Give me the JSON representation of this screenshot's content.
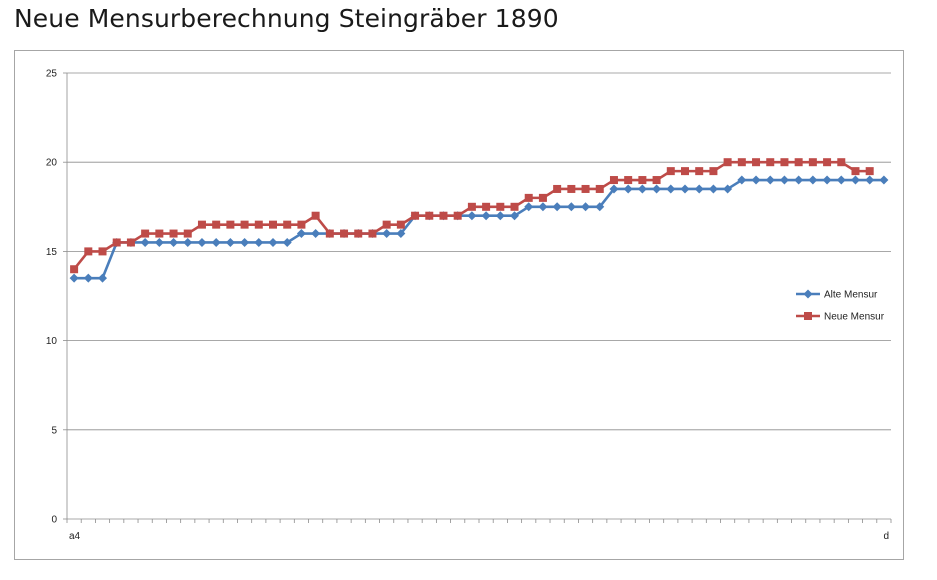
{
  "chart_data": {
    "type": "line",
    "title": "Neue Mensurberechnung Steingräber 1890",
    "xlabel": "",
    "ylabel": "",
    "ylim": [
      0,
      25
    ],
    "yticks": [
      0,
      5,
      10,
      15,
      20,
      25
    ],
    "grid": true,
    "legend": "right",
    "x_first_label": "a4",
    "x_last_label": "d",
    "series": [
      {
        "name": "Alte Mensur",
        "color": "#4a7ebb",
        "marker": "diamond",
        "values": [
          13.5,
          13.5,
          13.5,
          15.5,
          15.5,
          15.5,
          15.5,
          15.5,
          15.5,
          15.5,
          15.5,
          15.5,
          15.5,
          15.5,
          15.5,
          15.5,
          16,
          16,
          16,
          16,
          16,
          16,
          16,
          16,
          17,
          17,
          17,
          17,
          17,
          17,
          17,
          17,
          17.5,
          17.5,
          17.5,
          17.5,
          17.5,
          17.5,
          18.5,
          18.5,
          18.5,
          18.5,
          18.5,
          18.5,
          18.5,
          18.5,
          18.5,
          19,
          19,
          19,
          19,
          19,
          19,
          19,
          19,
          19,
          19,
          19
        ]
      },
      {
        "name": "Neue Mensur",
        "color": "#be4b48",
        "marker": "square",
        "values": [
          14,
          15,
          15,
          15.5,
          15.5,
          16,
          16,
          16,
          16,
          16.5,
          16.5,
          16.5,
          16.5,
          16.5,
          16.5,
          16.5,
          16.5,
          17,
          16,
          16,
          16,
          16,
          16.5,
          16.5,
          17,
          17,
          17,
          17,
          17.5,
          17.5,
          17.5,
          17.5,
          18,
          18,
          18.5,
          18.5,
          18.5,
          18.5,
          19,
          19,
          19,
          19,
          19.5,
          19.5,
          19.5,
          19.5,
          20,
          20,
          20,
          20,
          20,
          20,
          20,
          20,
          20,
          19.5,
          19.5
        ]
      }
    ]
  }
}
